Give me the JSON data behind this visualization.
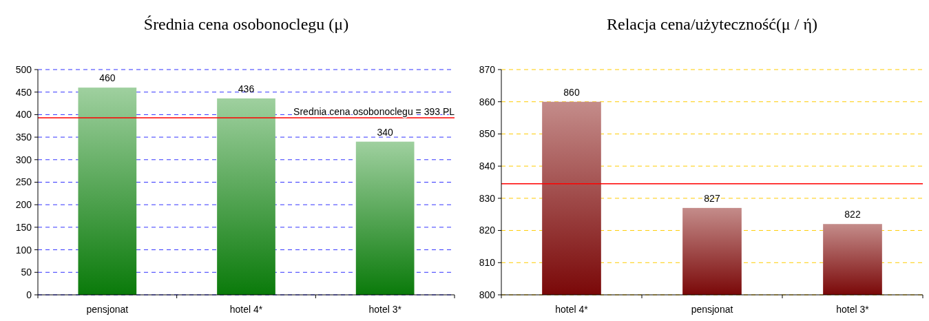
{
  "chart_data": [
    {
      "type": "bar",
      "title": "Średnia cena osobonoclegu (μ)",
      "categories": [
        "pensjonat",
        "hotel 4*",
        "hotel 3*"
      ],
      "values": [
        460,
        436,
        340
      ],
      "color": "#9fd09f",
      "data_labels": true,
      "ylim": [
        0,
        500
      ],
      "yticks": [
        0,
        50,
        100,
        150,
        200,
        250,
        300,
        350,
        400,
        450,
        500
      ],
      "grid": "y",
      "ref_lines": [
        {
          "axis": "y",
          "value": 393,
          "label": "Srednia cena osobonoclegu = 393 PL",
          "color": "#ff0000"
        }
      ]
    },
    {
      "type": "bar",
      "title": "Relacja cena/użyteczność(μ / ή)",
      "categories": [
        "hotel 4*",
        "pensjonat",
        "hotel 3*"
      ],
      "values": [
        860,
        827,
        822
      ],
      "color": "#c48c8a",
      "data_labels": true,
      "ylim": [
        800,
        870
      ],
      "yticks": [
        800,
        810,
        820,
        830,
        840,
        850,
        860,
        870
      ],
      "grid": "y",
      "ref_lines": [
        {
          "axis": "y",
          "value": 834.5,
          "color": "#ff0000"
        }
      ]
    }
  ]
}
